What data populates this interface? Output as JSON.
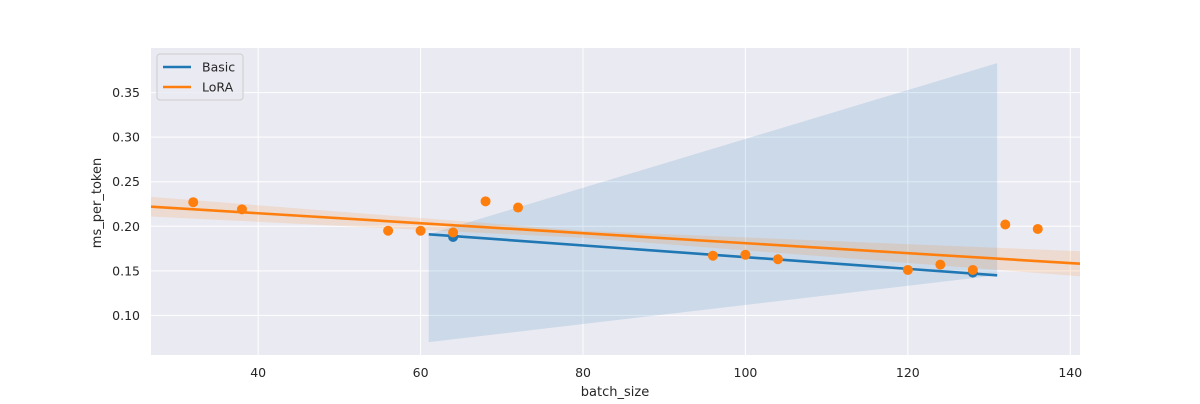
{
  "chart_data": {
    "type": "scatter",
    "title": "",
    "xlabel": "batch_size",
    "ylabel": "ms_per_token",
    "xlim": [
      26.8,
      141.2
    ],
    "ylim": [
      0.0556,
      0.4
    ],
    "xticks": [
      40,
      60,
      80,
      100,
      120,
      140
    ],
    "xtick_labels": [
      "40",
      "60",
      "80",
      "100",
      "120",
      "140"
    ],
    "yticks": [
      0.1,
      0.15,
      0.2,
      0.25,
      0.3,
      0.35
    ],
    "ytick_labels": [
      "0.10",
      "0.15",
      "0.20",
      "0.25",
      "0.30",
      "0.35"
    ],
    "grid": true,
    "legend_position": "upper left",
    "series": [
      {
        "name": "Basic",
        "color": "#1f77b4",
        "points": [
          {
            "x": 64,
            "y": 0.188
          },
          {
            "x": 128,
            "y": 0.148
          }
        ],
        "regression_line": {
          "x": [
            61,
            131
          ],
          "y": [
            0.191,
            0.145
          ]
        },
        "ci_band": {
          "x": [
            61,
            131
          ],
          "upper": [
            0.191,
            0.383
          ],
          "lower": [
            0.07,
            0.145
          ]
        }
      },
      {
        "name": "LoRA",
        "color": "#ff7f0e",
        "points": [
          {
            "x": 32,
            "y": 0.227
          },
          {
            "x": 38,
            "y": 0.219
          },
          {
            "x": 56,
            "y": 0.195
          },
          {
            "x": 60,
            "y": 0.195
          },
          {
            "x": 64,
            "y": 0.193
          },
          {
            "x": 68,
            "y": 0.228
          },
          {
            "x": 72,
            "y": 0.221
          },
          {
            "x": 96,
            "y": 0.167
          },
          {
            "x": 100,
            "y": 0.168
          },
          {
            "x": 104,
            "y": 0.163
          },
          {
            "x": 120,
            "y": 0.151
          },
          {
            "x": 124,
            "y": 0.157
          },
          {
            "x": 128,
            "y": 0.151
          },
          {
            "x": 132,
            "y": 0.202
          },
          {
            "x": 136,
            "y": 0.197
          }
        ],
        "regression_line": {
          "x": [
            26.8,
            141.2
          ],
          "y": [
            0.222,
            0.158
          ]
        },
        "ci_band": {
          "x": [
            26.8,
            80,
            141.2
          ],
          "upper": [
            0.233,
            0.195,
            0.172
          ],
          "lower": [
            0.211,
            0.187,
            0.144
          ]
        }
      }
    ]
  },
  "legend": {
    "items": [
      {
        "label": "Basic",
        "color": "#1f77b4"
      },
      {
        "label": "LoRA",
        "color": "#ff7f0e"
      }
    ]
  },
  "style": {
    "plot_background": "#eaeaf2",
    "grid_color": "#ffffff",
    "basic_band_color": "#1f77b4",
    "lora_band_color": "#ff7f0e"
  }
}
